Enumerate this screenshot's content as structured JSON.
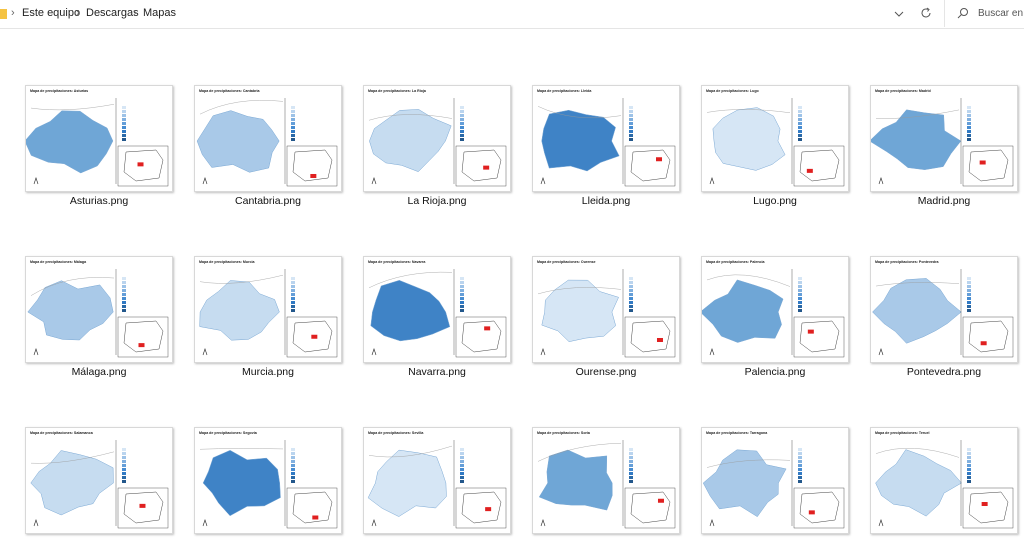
{
  "address": {
    "path": [
      "Este equipo",
      "Descargas",
      "Mapas"
    ]
  },
  "search": {
    "placeholder": "Buscar en M"
  },
  "files": [
    {
      "name": "Asturias.png",
      "thumb_title": "Mapa de precipitaciones: Asturias"
    },
    {
      "name": "Cantabria.png",
      "thumb_title": "Mapa de precipitaciones: Cantabria"
    },
    {
      "name": "La Rioja.png",
      "thumb_title": "Mapa de precipitaciones: La Rioja"
    },
    {
      "name": "Lleida.png",
      "thumb_title": "Mapa de precipitaciones: Lleida"
    },
    {
      "name": "Lugo.png",
      "thumb_title": "Mapa de precipitaciones: Lugo"
    },
    {
      "name": "Madrid.png",
      "thumb_title": "Mapa de precipitaciones: Madrid"
    },
    {
      "name": "Málaga.png",
      "thumb_title": "Mapa de precipitaciones: Málaga"
    },
    {
      "name": "Murcia.png",
      "thumb_title": "Mapa de precipitaciones: Murcia"
    },
    {
      "name": "Navarra.png",
      "thumb_title": "Mapa de precipitaciones: Navarra"
    },
    {
      "name": "Ourense.png",
      "thumb_title": "Mapa de precipitaciones: Ourense"
    },
    {
      "name": "Palencia.png",
      "thumb_title": "Mapa de precipitaciones: Palencia"
    },
    {
      "name": "Pontevedra.png",
      "thumb_title": "Mapa de precipitaciones: Pontevedra"
    },
    {
      "name": null,
      "thumb_title": "Mapa de precipitaciones: Salamanca"
    },
    {
      "name": null,
      "thumb_title": "Mapa de precipitaciones: Segovia"
    },
    {
      "name": null,
      "thumb_title": "Mapa de precipitaciones: Sevilla"
    },
    {
      "name": null,
      "thumb_title": "Mapa de precipitaciones: Soria"
    },
    {
      "name": null,
      "thumb_title": "Mapa de precipitaciones: Tarragona"
    },
    {
      "name": null,
      "thumb_title": "Mapa de precipitaciones: Teruel"
    }
  ]
}
